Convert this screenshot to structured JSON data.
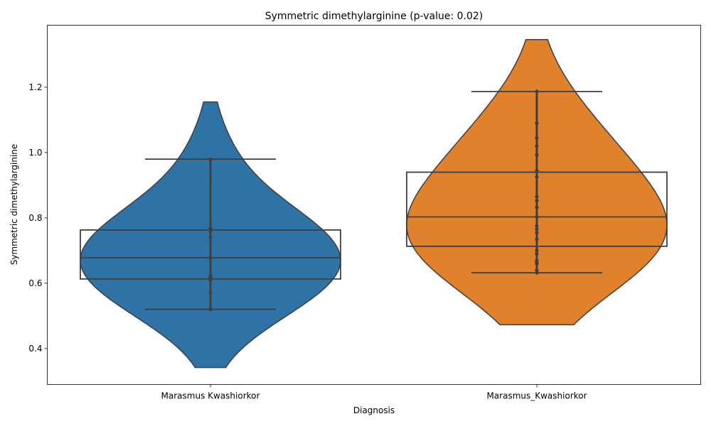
{
  "chart_data": {
    "type": "violin",
    "title": "Symmetric dimethylarginine (p-value: 0.02)",
    "xlabel": "Diagnosis",
    "ylabel": "Symmetric dimethylarginine",
    "ylim": [
      0.29,
      1.39
    ],
    "yticks": [
      "0.4",
      "0.6",
      "0.8",
      "1.0",
      "1.2"
    ],
    "grid": false,
    "colors": {
      "edge": "#3f3f3f",
      "frame": "#000000"
    },
    "categories": [
      "Marasmus Kwashiorkor",
      "Marasmus_Kwashiorkor"
    ],
    "series": [
      {
        "color": "#2e72a6",
        "density_range": [
          0.342,
          1.155
        ],
        "box": {
          "q1": 0.613,
          "median": 0.678,
          "q3": 0.763
        },
        "whiskers": [
          0.52,
          0.98
        ],
        "points": [
          0.52,
          0.57,
          0.61,
          0.615,
          0.62,
          0.678,
          0.74,
          0.76,
          0.765,
          0.77,
          0.98
        ]
      },
      {
        "color": "#e1812c",
        "density_range": [
          0.473,
          1.346
        ],
        "box": {
          "q1": 0.713,
          "median": 0.803,
          "q3": 0.94
        },
        "whiskers": [
          0.632,
          1.187
        ],
        "points": [
          0.632,
          0.64,
          0.66,
          0.665,
          0.67,
          0.69,
          0.7,
          0.735,
          0.755,
          0.765,
          0.775,
          0.803,
          0.832,
          0.853,
          0.865,
          0.925,
          0.945,
          0.993,
          1.02,
          1.045,
          1.09,
          1.187
        ]
      }
    ]
  }
}
